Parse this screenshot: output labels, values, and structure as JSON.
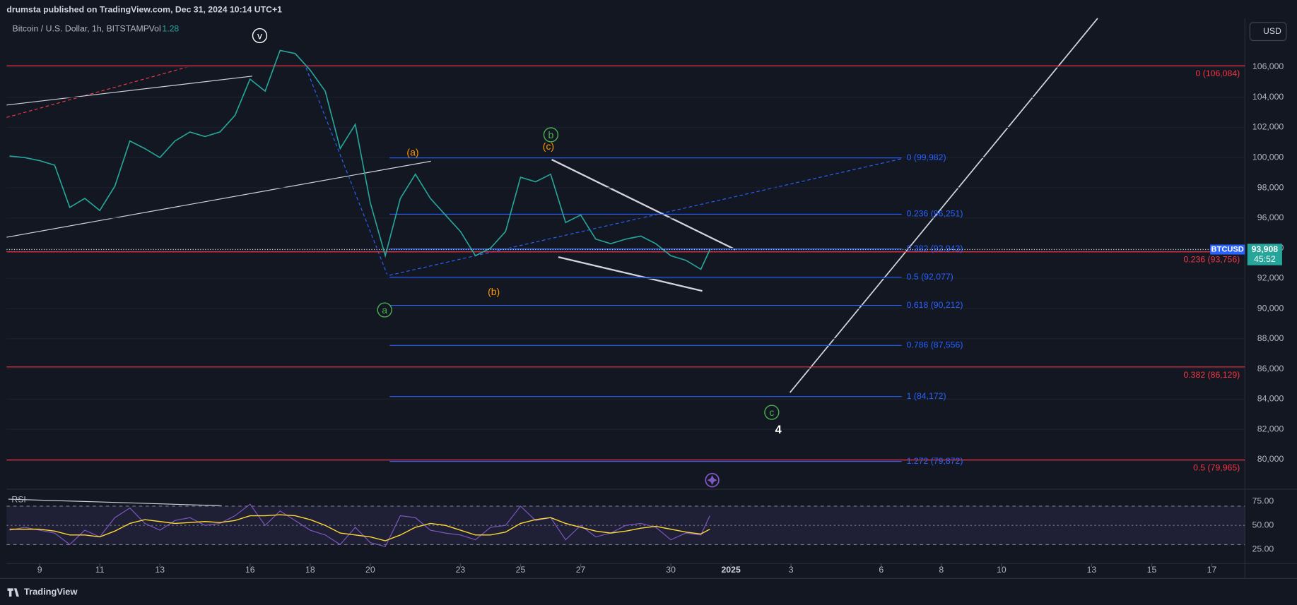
{
  "header": {
    "publisher": "drumsta published on TradingView.com, Dec 31, 2024 10:14 UTC+1"
  },
  "symbol": {
    "name": "Bitcoin / U.S. Dollar, 1h, BITSTAMP",
    "volume_label": "Vol",
    "volume_value": "1.28"
  },
  "currency_button": "USD",
  "footer": {
    "brand": "TradingView"
  },
  "chart_data": [
    {
      "type": "line",
      "x": [
        8,
        8.5,
        9,
        9.5,
        10,
        10.5,
        11,
        11.5,
        12,
        12.5,
        13,
        13.5,
        14,
        14.5,
        15,
        15.5,
        16,
        16.5,
        17,
        17.5,
        18,
        18.5,
        19,
        19.5,
        20,
        20.5,
        21,
        21.5,
        22,
        22.5,
        23,
        23.5,
        24,
        24.5,
        25,
        25.5,
        26,
        26.5,
        27,
        27.5,
        28,
        28.5,
        29,
        29.5,
        30,
        30.5,
        31,
        31.3
      ],
      "series": [
        {
          "name": "BTCUSD",
          "color": "#26a69a",
          "values": [
            100100,
            100000,
            99800,
            99500,
            96700,
            97300,
            96500,
            98100,
            101100,
            100600,
            100000,
            101100,
            101700,
            101400,
            101700,
            102800,
            105200,
            104400,
            107100,
            106900,
            105800,
            104400,
            100600,
            102200,
            97000,
            93500,
            97300,
            98900,
            97300,
            96200,
            95100,
            93500,
            94000,
            95100,
            98700,
            98400,
            98900,
            95700,
            96200,
            94600,
            94300,
            94600,
            94800,
            94300,
            93500,
            93200,
            92600,
            93908
          ]
        }
      ],
      "last_price": {
        "value": 93908,
        "label": "93,908",
        "countdown": "45:52"
      },
      "xlim": [
        7.9,
        49.1
      ],
      "xticks": [
        9,
        11,
        13,
        16,
        18,
        20,
        23,
        25,
        27,
        30,
        {
          "value": 32,
          "label": "2025"
        },
        {
          "value": 34,
          "label": "3"
        },
        {
          "value": 37,
          "label": "6"
        },
        {
          "value": 39,
          "label": "8"
        },
        {
          "value": 41,
          "label": "10"
        },
        {
          "value": 44,
          "label": "13"
        },
        {
          "value": 46,
          "label": "15"
        },
        {
          "value": 48,
          "label": "17"
        }
      ],
      "ylim": [
        78140,
        109230
      ],
      "yticks": [
        {
          "value": 80000,
          "label": "80,000"
        },
        {
          "value": 82000,
          "label": "82,000"
        },
        {
          "value": 84000,
          "label": "84,000"
        },
        {
          "value": 86000,
          "label": "86,000"
        },
        {
          "value": 88000,
          "label": "88,000"
        },
        {
          "value": 90000,
          "label": "90,000"
        },
        {
          "value": 92000,
          "label": "92,000"
        },
        {
          "value": 94000,
          "label": "94,000"
        },
        {
          "value": 96000,
          "label": "96,000"
        },
        {
          "value": 98000,
          "label": "98,000"
        },
        {
          "value": 100000,
          "label": "100,000"
        },
        {
          "value": 102000,
          "label": "102,000"
        },
        {
          "value": 104000,
          "label": "104,000"
        },
        {
          "value": 106000,
          "label": "106,000"
        }
      ],
      "fib_blue": {
        "color": "#2962ff",
        "levels": [
          {
            "value": 99982,
            "label": "0 (99,982)"
          },
          {
            "value": 96251,
            "label": "0.236 (96,251)"
          },
          {
            "value": 93943,
            "label": "0.382 (93,943)"
          },
          {
            "value": 92077,
            "label": "0.5 (92,077)"
          },
          {
            "value": 90212,
            "label": "0.618 (90,212)"
          },
          {
            "value": 87556,
            "label": "0.786 (87,556)"
          },
          {
            "value": 84172,
            "label": "1 (84,172)"
          },
          {
            "value": 79872,
            "label": "1.272 (79,872)"
          }
        ]
      },
      "fib_red": {
        "color": "#f23645",
        "levels": [
          {
            "value": 106084,
            "label": "0 (106,084)"
          },
          {
            "value": 93756,
            "label": "0.236 (93,756)"
          },
          {
            "value": 86129,
            "label": "0.382 (86,129)"
          },
          {
            "value": 79965,
            "label": "0.5 (79,965)"
          }
        ]
      },
      "wave_labels": [
        "v",
        "(a)",
        "(c)",
        "b",
        "a",
        "(b)",
        "c",
        "4"
      ]
    },
    {
      "type": "line",
      "title": "RSI",
      "x": [
        8,
        8.5,
        9,
        9.5,
        10,
        10.5,
        11,
        11.5,
        12,
        12.5,
        13,
        13.5,
        14,
        14.5,
        15,
        15.5,
        16,
        16.5,
        17,
        17.5,
        18,
        18.5,
        19,
        19.5,
        20,
        20.5,
        21,
        21.5,
        22,
        22.5,
        23,
        23.5,
        24,
        24.5,
        25,
        25.5,
        26,
        26.5,
        27,
        27.5,
        28,
        28.5,
        29,
        29.5,
        30,
        30.5,
        31,
        31.3
      ],
      "series": [
        {
          "color": "#7e57c2",
          "values": [
            45,
            48,
            45,
            42,
            30,
            45,
            38,
            58,
            68,
            52,
            45,
            55,
            58,
            50,
            52,
            60,
            72,
            50,
            65,
            55,
            45,
            40,
            30,
            48,
            32,
            28,
            60,
            58,
            45,
            42,
            40,
            35,
            48,
            50,
            70,
            55,
            58,
            35,
            50,
            38,
            42,
            50,
            52,
            48,
            35,
            42,
            40,
            60
          ]
        },
        {
          "color": "#fdd835",
          "values": [
            46,
            46,
            46,
            44,
            40,
            40,
            38,
            44,
            52,
            56,
            54,
            52,
            53,
            54,
            53,
            55,
            60,
            60,
            61,
            60,
            56,
            50,
            42,
            40,
            38,
            34,
            40,
            48,
            52,
            50,
            45,
            40,
            40,
            43,
            52,
            56,
            58,
            52,
            48,
            44,
            42,
            44,
            47,
            49,
            46,
            43,
            41,
            46
          ]
        }
      ],
      "band": [
        30,
        70
      ],
      "ylim": [
        12,
        85
      ],
      "yticks": [
        {
          "value": 75,
          "label": "75.00"
        },
        {
          "value": 50,
          "label": "50.00"
        },
        {
          "value": 25,
          "label": "25.00"
        }
      ]
    }
  ]
}
